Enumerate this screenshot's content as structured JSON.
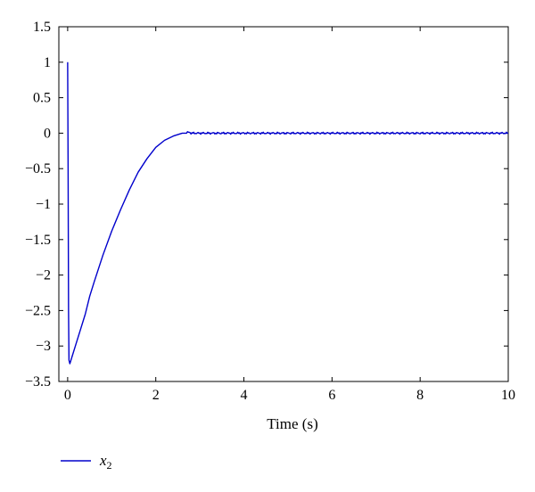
{
  "chart_data": {
    "type": "line",
    "xlabel": "Time (s)",
    "ylabel": "",
    "title": "",
    "xlim": [
      -0.2,
      10
    ],
    "ylim": [
      -3.5,
      1.5
    ],
    "xticks": [
      0,
      2,
      4,
      6,
      8,
      10
    ],
    "yticks": [
      1.5,
      1,
      0.5,
      0,
      -0.5,
      -1,
      -1.5,
      -2,
      -2.5,
      -3,
      -3.5
    ],
    "ytick_labels": [
      "1.5",
      "1",
      "0.5",
      "0",
      "−0.5",
      "−1",
      "−1.5",
      "−2",
      "−2.5",
      "−3",
      "−3.5"
    ],
    "grid": false,
    "legend_position": "bottom-left",
    "series": [
      {
        "name": "x",
        "name_subscript": "2",
        "color": "#0000cc",
        "x": [
          0,
          0.01,
          0.02,
          0.03,
          0.05,
          0.1,
          0.2,
          0.3,
          0.4,
          0.5,
          0.6,
          0.8,
          1.0,
          1.2,
          1.4,
          1.6,
          1.8,
          2.0,
          2.2,
          2.4,
          2.6,
          2.7,
          2.8,
          3.0,
          4.0,
          5.0,
          6.0,
          7.0,
          8.0,
          9.0,
          10.0
        ],
        "y": [
          1.0,
          -0.5,
          -2.5,
          -3.2,
          -3.25,
          -3.15,
          -2.95,
          -2.75,
          -2.55,
          -2.3,
          -2.1,
          -1.72,
          -1.38,
          -1.08,
          -0.8,
          -0.55,
          -0.36,
          -0.2,
          -0.1,
          -0.04,
          0.0,
          0.01,
          0.0,
          0.0,
          0.0,
          0.0,
          0.0,
          0.0,
          0.0,
          0.0,
          0.0
        ],
        "noise_after": 2.7,
        "noise_amplitude": 0.015
      }
    ]
  }
}
